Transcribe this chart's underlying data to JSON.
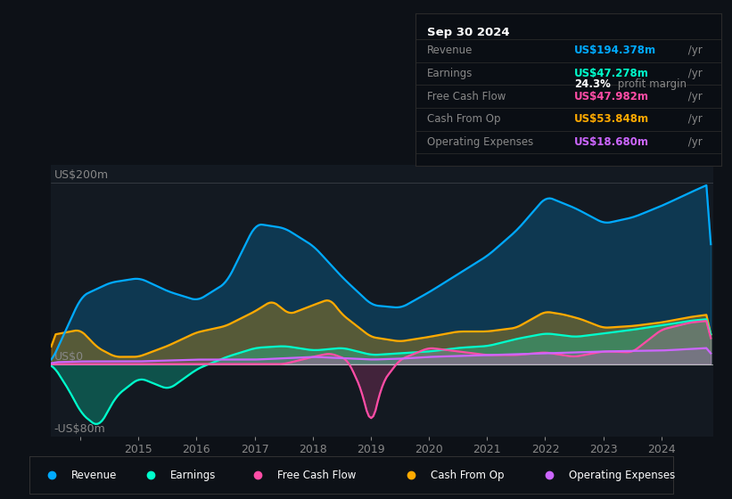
{
  "bg_color": "#0d1117",
  "plot_bg_color": "#131921",
  "title": "Sep 30 2024",
  "y_label_top": "US$200m",
  "y_label_zero": "US$0",
  "y_label_bot": "-US$80m",
  "ylim": [
    -80,
    220
  ],
  "colors": {
    "revenue": "#00aaff",
    "earnings": "#00ffcc",
    "free_cash_flow": "#ff4da6",
    "cash_from_op": "#ffaa00",
    "operating_expenses": "#cc66ff"
  },
  "info_rows": [
    {
      "label": "Revenue",
      "value": "US$194.378m",
      "unit": " /yr",
      "color_key": "revenue"
    },
    {
      "label": "Earnings",
      "value": "US$47.278m",
      "unit": " /yr",
      "color_key": "earnings"
    },
    {
      "label": "Free Cash Flow",
      "value": "US$47.982m",
      "unit": " /yr",
      "color_key": "free_cash_flow"
    },
    {
      "label": "Cash From Op",
      "value": "US$53.848m",
      "unit": " /yr",
      "color_key": "cash_from_op"
    },
    {
      "label": "Operating Expenses",
      "value": "US$18.680m",
      "unit": " /yr",
      "color_key": "operating_expenses"
    }
  ],
  "profit_margin": "24.3%",
  "legend_items": [
    {
      "label": "Revenue",
      "color_key": "revenue"
    },
    {
      "label": "Earnings",
      "color_key": "earnings"
    },
    {
      "label": "Free Cash Flow",
      "color_key": "free_cash_flow"
    },
    {
      "label": "Cash From Op",
      "color_key": "cash_from_op"
    },
    {
      "label": "Operating Expenses",
      "color_key": "operating_expenses"
    }
  ]
}
